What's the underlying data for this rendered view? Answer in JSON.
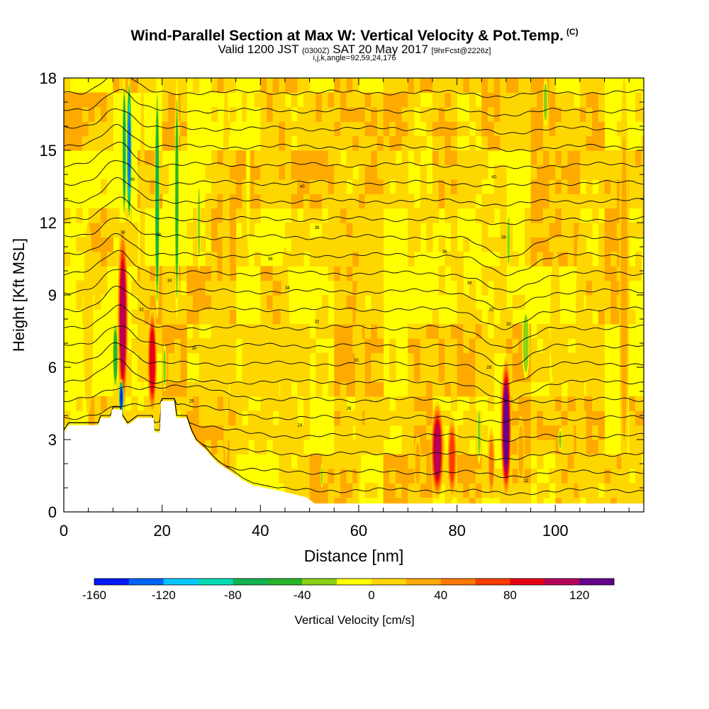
{
  "title": {
    "main": "Wind-Parallel Section at Max W: Vertical Velocity & Pot.Temp.",
    "copyright": "(C)",
    "valid_prefix": "Valid 1200 JST",
    "valid_utc": "(0300Z)",
    "valid_date": "SAT 20 May 2017",
    "fcst": "[9hrFcst@2226z]",
    "grid": "i,j,k,angle=92,59,24,176"
  },
  "colors": {
    "background": "#ffff00",
    "terrain": "#ffffff",
    "contour": "#000000"
  },
  "chart_data": {
    "type": "heatmap",
    "xlabel": "Distance [nm]",
    "ylabel": "Height [Kft MSL]",
    "xlim": [
      0,
      118
    ],
    "ylim": [
      0,
      18
    ],
    "x_ticks": [
      0,
      20,
      40,
      60,
      80,
      100
    ],
    "y_ticks": [
      0,
      3,
      6,
      9,
      12,
      15,
      18
    ],
    "colorbar": {
      "label": "Vertical Velocity [cm/s]",
      "bins": [
        -160,
        -140,
        -120,
        -100,
        -80,
        -60,
        -40,
        -20,
        0,
        20,
        40,
        60,
        80,
        100,
        120,
        140
      ],
      "tick_labels": [
        -160,
        -120,
        -80,
        -40,
        0,
        40,
        80,
        120
      ],
      "colors": [
        "#0018ff",
        "#0064ff",
        "#00c8ff",
        "#00dcb4",
        "#10b450",
        "#28b428",
        "#8cd214",
        "#ffff00",
        "#ffd700",
        "#ffaa00",
        "#ff7800",
        "#ff3c00",
        "#e60014",
        "#b4005a",
        "#64008c"
      ]
    },
    "terrain_profile": [
      [
        0,
        3.3
      ],
      [
        1,
        3.6
      ],
      [
        7,
        3.6
      ],
      [
        7.5,
        3.9
      ],
      [
        9.5,
        3.9
      ],
      [
        9.8,
        4.25
      ],
      [
        11.8,
        4.25
      ],
      [
        12,
        3.9
      ],
      [
        13,
        3.6
      ],
      [
        15,
        3.9
      ],
      [
        18.3,
        3.9
      ],
      [
        18.5,
        3.3
      ],
      [
        19.5,
        3.3
      ],
      [
        19.8,
        4.6
      ],
      [
        22.5,
        4.6
      ],
      [
        22.8,
        3.9
      ],
      [
        25,
        3.9
      ],
      [
        25.5,
        3.6
      ],
      [
        26,
        3.3
      ],
      [
        27,
        2.9
      ],
      [
        28.8,
        2.6
      ],
      [
        30,
        2.3
      ],
      [
        31.5,
        2
      ],
      [
        33,
        1.8
      ],
      [
        34.5,
        1.6
      ],
      [
        36.5,
        1.3
      ],
      [
        38.5,
        1.1
      ],
      [
        44.5,
        0.85
      ],
      [
        49.5,
        0.6
      ],
      [
        51,
        0.35
      ],
      [
        118,
        0.35
      ]
    ],
    "updrafts": [
      {
        "x": 12,
        "y0": 4.0,
        "y1": 12,
        "w": 2.2,
        "v": 110
      },
      {
        "x": 18,
        "y0": 4.0,
        "y1": 8.5,
        "w": 2.0,
        "v": 100
      },
      {
        "x": 76,
        "y0": 0.5,
        "y1": 4.6,
        "w": 2.8,
        "v": 110
      },
      {
        "x": 79,
        "y0": 0.5,
        "y1": 4.0,
        "w": 2.0,
        "v": 70
      },
      {
        "x": 90,
        "y0": 0.5,
        "y1": 6.5,
        "w": 2.2,
        "v": 140
      },
      {
        "x": 87,
        "y0": 0.5,
        "y1": 3.5,
        "w": 1.5,
        "v": 50
      },
      {
        "x": 72,
        "y0": 0.8,
        "y1": 3.2,
        "w": 1.5,
        "v": 30
      },
      {
        "x": 93,
        "y0": 1.0,
        "y1": 4.0,
        "w": 1.5,
        "v": 30
      },
      {
        "x": 100,
        "y0": 5,
        "y1": 11,
        "w": 2.0,
        "v": 25
      },
      {
        "x": 105,
        "y0": 0.5,
        "y1": 12,
        "w": 1.8,
        "v": 25
      },
      {
        "x": 114,
        "y0": 0.5,
        "y1": 18,
        "w": 2.0,
        "v": 30
      },
      {
        "x": 33,
        "y0": 2.0,
        "y1": 18,
        "w": 1.5,
        "v": 25
      },
      {
        "x": 45,
        "y0": 1.0,
        "y1": 11,
        "w": 2.0,
        "v": 20
      },
      {
        "x": 16,
        "y0": 5.0,
        "y1": 18,
        "w": 1.0,
        "v": 25
      },
      {
        "x": 5,
        "y0": 4.0,
        "y1": 12,
        "w": 2.0,
        "v": 25
      },
      {
        "x": 60,
        "y0": 1.0,
        "y1": 10,
        "w": 1.5,
        "v": 20
      }
    ],
    "downdrafts": [
      {
        "x": 13.3,
        "y0": 12,
        "y1": 18,
        "w": 1.0,
        "v": -130
      },
      {
        "x": 12.3,
        "y0": 12,
        "y1": 18,
        "w": 0.8,
        "v": -80
      },
      {
        "x": 11.7,
        "y0": 4.0,
        "y1": 5.5,
        "w": 1.0,
        "v": -150
      },
      {
        "x": 10.5,
        "y0": 5.0,
        "y1": 8.0,
        "w": 1.2,
        "v": -60
      },
      {
        "x": 19,
        "y0": 8,
        "y1": 18,
        "w": 1.0,
        "v": -70
      },
      {
        "x": 23,
        "y0": 8,
        "y1": 18,
        "w": 0.9,
        "v": -55
      },
      {
        "x": 20.5,
        "y0": 5,
        "y1": 7,
        "w": 0.8,
        "v": -35
      },
      {
        "x": 27.5,
        "y0": 10,
        "y1": 14,
        "w": 0.7,
        "v": -30
      },
      {
        "x": 37.5,
        "y0": 11,
        "y1": 18,
        "w": 0.8,
        "v": -25
      },
      {
        "x": 38,
        "y0": 15,
        "y1": 18,
        "w": 0.6,
        "v": -25
      },
      {
        "x": 94,
        "y0": 5.5,
        "y1": 8.5,
        "w": 1.5,
        "v": -45
      },
      {
        "x": 90.5,
        "y0": 10,
        "y1": 12.5,
        "w": 0.8,
        "v": -40
      },
      {
        "x": 98,
        "y0": 16,
        "y1": 18,
        "w": 1.0,
        "v": -40
      },
      {
        "x": 101,
        "y0": 2.5,
        "y1": 3.5,
        "w": 0.8,
        "v": -30
      },
      {
        "x": 84.5,
        "y0": 2.0,
        "y1": 4.5,
        "w": 0.8,
        "v": -35
      },
      {
        "x": 52.5,
        "y0": 1.0,
        "y1": 2.0,
        "w": 0.5,
        "v": -30
      }
    ],
    "theta_labels": [
      {
        "x": 14,
        "y": 13.8,
        "text": "40"
      },
      {
        "x": 48.5,
        "y": 13.5,
        "text": "40"
      },
      {
        "x": 87.5,
        "y": 13.9,
        "text": "40"
      },
      {
        "x": 12,
        "y": 11.6,
        "text": "38"
      },
      {
        "x": 19.3,
        "y": 11.5,
        "text": "38"
      },
      {
        "x": 51.5,
        "y": 11.8,
        "text": "38"
      },
      {
        "x": 89.5,
        "y": 11.4,
        "text": "38"
      },
      {
        "x": 42,
        "y": 10.5,
        "text": "36"
      },
      {
        "x": 77.5,
        "y": 10.8,
        "text": "36"
      },
      {
        "x": 21.5,
        "y": 9.6,
        "text": "34"
      },
      {
        "x": 45.5,
        "y": 9.3,
        "text": "34"
      },
      {
        "x": 82.5,
        "y": 9.5,
        "text": "34"
      },
      {
        "x": 15.8,
        "y": 8.4,
        "text": "32"
      },
      {
        "x": 51.5,
        "y": 7.9,
        "text": "32"
      },
      {
        "x": 87,
        "y": 8.4,
        "text": "32"
      },
      {
        "x": 26.5,
        "y": 6.8,
        "text": "30"
      },
      {
        "x": 59.5,
        "y": 6.3,
        "text": "30"
      },
      {
        "x": 90.5,
        "y": 7.8,
        "text": "30"
      },
      {
        "x": 86.5,
        "y": 6.0,
        "text": "28"
      },
      {
        "x": 58,
        "y": 4.3,
        "text": "26"
      },
      {
        "x": 26,
        "y": 4.6,
        "text": "26"
      },
      {
        "x": 48,
        "y": 3.6,
        "text": "24"
      },
      {
        "x": 94,
        "y": 1.3,
        "text": "22"
      }
    ]
  }
}
